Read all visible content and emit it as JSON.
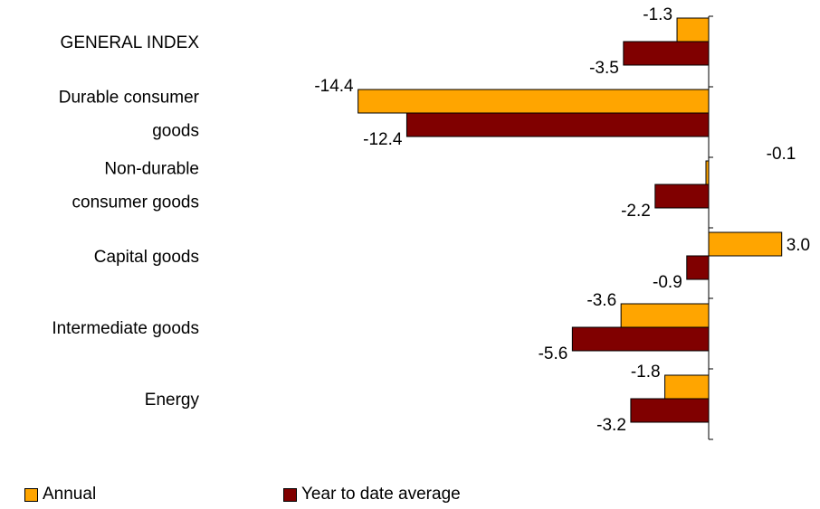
{
  "chart_data": {
    "type": "bar",
    "orientation": "horizontal",
    "categories": [
      [
        "GENERAL INDEX"
      ],
      [
        "Durable consumer",
        "goods"
      ],
      [
        "Non-durable",
        "consumer goods"
      ],
      [
        "Capital goods"
      ],
      [
        "Intermediate goods"
      ],
      [
        "Energy"
      ]
    ],
    "series": [
      {
        "name": "Annual",
        "color": "#FFA500",
        "values": [
          -1.3,
          -14.4,
          -0.1,
          3.0,
          -3.6,
          -1.8
        ],
        "labels": [
          "-1.3",
          "-14.4",
          "-0.1",
          "3.0",
          "-3.6",
          "-1.8"
        ]
      },
      {
        "name": "Year to date average",
        "color": "#800000",
        "values": [
          -3.5,
          -12.4,
          -2.2,
          -0.9,
          -5.6,
          -3.2
        ],
        "labels": [
          "-3.5",
          "-12.4",
          "-2.2",
          "-0.9",
          "-5.6",
          "-3.2"
        ]
      }
    ],
    "xlim": [
      -15,
      3
    ],
    "grid": false,
    "legend_position": "bottom-left"
  },
  "legend": {
    "annual_label": "Annual",
    "ytd_label": "Year to date average"
  }
}
